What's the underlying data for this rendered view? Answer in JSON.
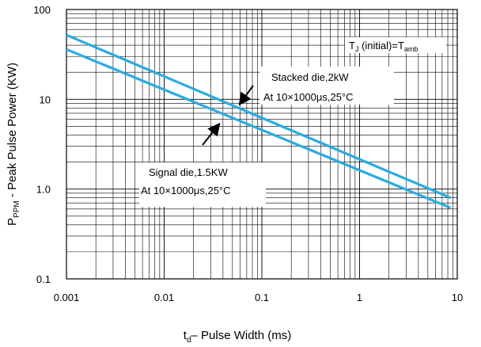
{
  "chart_data": {
    "type": "line",
    "x_scale": "log",
    "y_scale": "log",
    "xlim": [
      0.001,
      10
    ],
    "ylim": [
      0.1,
      100
    ],
    "grid": true,
    "x_ticks": [
      {
        "value": 0.001,
        "label": "0.001"
      },
      {
        "value": 0.01,
        "label": "0.01"
      },
      {
        "value": 0.1,
        "label": "0.1"
      },
      {
        "value": 1,
        "label": "1"
      },
      {
        "value": 10,
        "label": "10"
      }
    ],
    "y_ticks": [
      {
        "value": 100,
        "label": "100"
      },
      {
        "value": 10,
        "label": "10"
      },
      {
        "value": 1,
        "label": "1.0"
      },
      {
        "value": 0.1,
        "label": "0.1"
      }
    ],
    "xlabel": {
      "main": "t",
      "sub": "d",
      "rest": "– Pulse Width (ms)"
    },
    "ylabel": {
      "main": "P",
      "sub": "PPM",
      "rest": " - Peak Pulse Power (KW)"
    },
    "series": [
      {
        "x": [
          0.001,
          8.5
        ],
        "y": [
          52,
          0.8
        ],
        "color": "#29abe2"
      },
      {
        "x": [
          0.001,
          8.5
        ],
        "y": [
          36,
          0.62
        ],
        "color": "#29abe2"
      }
    ],
    "annotations": {
      "condition": {
        "t": "T",
        "t_sub": "J",
        "mid": " (initial)=T",
        "end_sub": "amb"
      },
      "stacked": {
        "line1": "Stacked die,2kW",
        "line2": "At 10×1000μs,25°C"
      },
      "signal": {
        "line1": "Signal die,1.5KW",
        "line2": "At 10×1000μs,25°C"
      }
    }
  }
}
